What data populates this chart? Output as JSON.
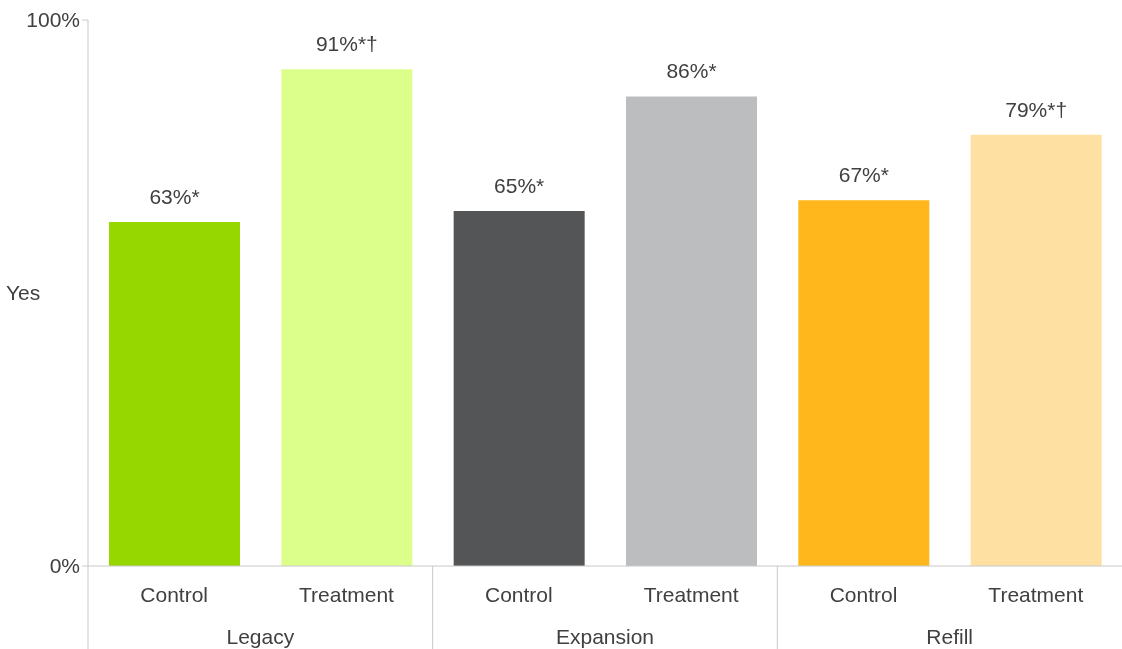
{
  "chart_data": {
    "type": "bar",
    "ylabel": "Yes",
    "categories": [
      "Control",
      "Treatment",
      "Control",
      "Treatment",
      "Control",
      "Treatment"
    ],
    "values": [
      63,
      91,
      65,
      86,
      67,
      79
    ],
    "colors": [
      "#97d700",
      "#dbff8a",
      "#545557",
      "#bcbdbf",
      "#ffb71b",
      "#ffe0a3"
    ],
    "value_labels": [
      "63%*",
      "91%*†",
      "65%*",
      "86%*",
      "67%*",
      "79%*†"
    ],
    "annotations": [
      "Legacy",
      "Expansion",
      "Refill"
    ],
    "ylim": [
      0,
      100
    ],
    "yticks": [
      {
        "value": 0,
        "label": "0%"
      },
      {
        "value": 100,
        "label": "100%"
      }
    ],
    "grid": false,
    "legend": false
  }
}
